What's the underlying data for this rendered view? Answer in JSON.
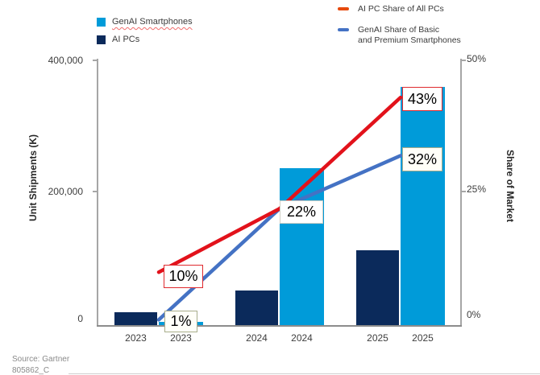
{
  "legend_bars": [
    {
      "label": "GenAI Smartphones",
      "color": "#009BD9"
    },
    {
      "label": "AI PCs",
      "color": "#0B2A5B"
    }
  ],
  "legend_lines": [
    {
      "label": "AI PC Share of All PCs",
      "color": "#E64A0D"
    },
    {
      "label": "GenAI Share of Basic\nand Premium Smartphones",
      "color": "#4472C4"
    }
  ],
  "chart_data": {
    "type": "bar",
    "subtype": "combo-bar-line",
    "title": "",
    "categories": [
      "2023",
      "2023",
      "2024",
      "2024",
      "2025",
      "2025"
    ],
    "bar_series": [
      {
        "name": "AI PCs",
        "color": "#0B2A5B",
        "slots": [
          0,
          2,
          4
        ],
        "values_k": [
          19000,
          52000,
          113000
        ]
      },
      {
        "name": "GenAI Smartphones",
        "color": "#009BD9",
        "slots": [
          1,
          3,
          5
        ],
        "values_k": [
          5000,
          237000,
          360000
        ]
      }
    ],
    "line_series": [
      {
        "name": "AI PC Share of All PCs",
        "color": "#E2121B",
        "years": [
          "2023",
          "2024",
          "2025"
        ],
        "values_pct": [
          10,
          22,
          43
        ]
      },
      {
        "name": "GenAI Share of Basic and Premium Smartphones",
        "color": "#4472C4",
        "years": [
          "2023",
          "2024",
          "2025"
        ],
        "values_pct": [
          1,
          22,
          32
        ]
      }
    ],
    "data_labels": [
      {
        "text": "10%",
        "style": "red"
      },
      {
        "text": "1%",
        "style": "olive"
      },
      {
        "text": "22%",
        "style": "grey"
      },
      {
        "text": "43%",
        "style": "red"
      },
      {
        "text": "32%",
        "style": "olive"
      }
    ],
    "y_left": {
      "label": "Unit Shipments (K)",
      "ticks": [
        "0",
        "200,000",
        "400,000"
      ],
      "lim": [
        0,
        400000
      ]
    },
    "y_right": {
      "label": "Share of Market",
      "ticks": [
        "0%",
        "25%",
        "50%"
      ],
      "lim": [
        0,
        50
      ]
    },
    "grid": "off",
    "legend_position": "top"
  },
  "source": {
    "line1": "Source: Gartner",
    "line2": "805862_C"
  }
}
